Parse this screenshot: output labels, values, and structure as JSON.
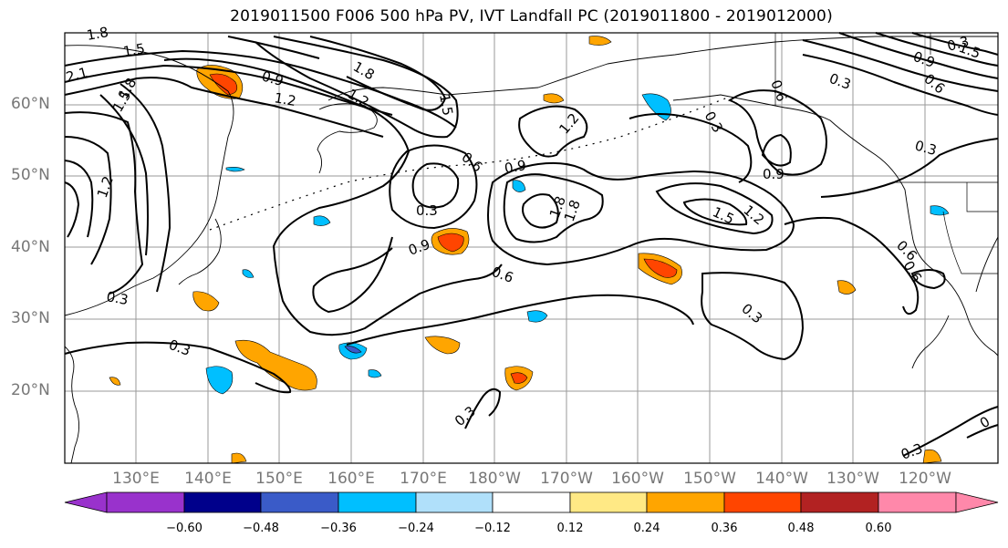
{
  "title": "2019011500 F006 500 hPa PV, IVT Landfall PC (2019011800 - 2019012000)",
  "lat_labels": [
    "60°N",
    "50°N",
    "40°N",
    "30°N",
    "20°N"
  ],
  "lon_labels": [
    "130°E",
    "140°E",
    "150°E",
    "160°E",
    "170°E",
    "180°W",
    "170°W",
    "160°W",
    "150°W",
    "140°W",
    "130°W",
    "120°W"
  ],
  "colorbar": {
    "ticks": [
      "−0.60",
      "−0.48",
      "−0.36",
      "−0.24",
      "−0.12",
      "0.12",
      "0.24",
      "0.36",
      "0.48",
      "0.60"
    ],
    "colors": [
      "#9932cc",
      "#00008b",
      "#3a5bc8",
      "#00bfff",
      "#b0e0fa",
      "#ffffff",
      "#ffe985",
      "#ffa500",
      "#ff4500",
      "#b22222",
      "#ff88aa"
    ]
  },
  "contour_labels": [
    "1.8",
    "1.5",
    "2.1",
    "1.8",
    "1.5",
    "0.9",
    "1.8",
    "1.5",
    "1.2",
    "0.6",
    "0.9",
    "0.3",
    "0.9",
    "0.6",
    "0.3",
    "1.2",
    "0.3",
    "1.8",
    "0.3",
    "0.6",
    "0.9",
    "1.2",
    "0.3",
    "1.5",
    "0.9",
    "0.6",
    "0.3",
    "0.6",
    "0.3",
    "0.3",
    "0.3",
    "0.3",
    "0",
    "1.2",
    "1.5",
    "1.2",
    "1.8",
    "0.6"
  ]
}
